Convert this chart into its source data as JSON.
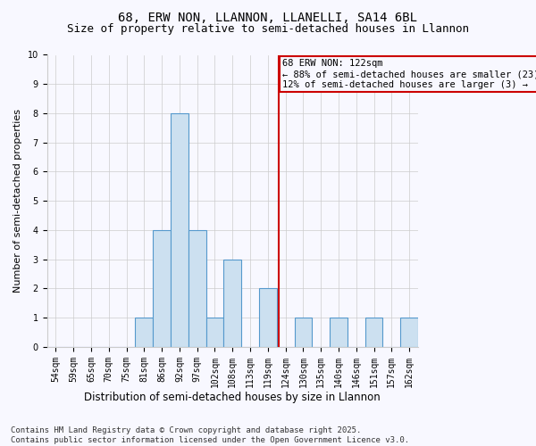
{
  "title1": "68, ERW NON, LLANNON, LLANELLI, SA14 6BL",
  "title2": "Size of property relative to semi-detached houses in Llannon",
  "xlabel": "Distribution of semi-detached houses by size in Llannon",
  "ylabel": "Number of semi-detached properties",
  "categories": [
    "54sqm",
    "59sqm",
    "65sqm",
    "70sqm",
    "75sqm",
    "81sqm",
    "86sqm",
    "92sqm",
    "97sqm",
    "102sqm",
    "108sqm",
    "113sqm",
    "119sqm",
    "124sqm",
    "130sqm",
    "135sqm",
    "140sqm",
    "146sqm",
    "151sqm",
    "157sqm",
    "162sqm"
  ],
  "values": [
    0,
    0,
    0,
    0,
    0,
    1,
    4,
    8,
    4,
    1,
    3,
    0,
    2,
    0,
    1,
    0,
    1,
    0,
    1,
    0,
    1
  ],
  "bar_color": "#cce0f0",
  "bar_edge_color": "#5599cc",
  "pct_smaller": 88,
  "count_smaller": 23,
  "pct_larger": 12,
  "count_larger": 3,
  "vline_color": "#cc0000",
  "box_edge_color": "#cc0000",
  "ylim": [
    0,
    10
  ],
  "yticks": [
    0,
    1,
    2,
    3,
    4,
    5,
    6,
    7,
    8,
    9,
    10
  ],
  "grid_color": "#cccccc",
  "bg_color": "#f8f8ff",
  "footnote": "Contains HM Land Registry data © Crown copyright and database right 2025.\nContains public sector information licensed under the Open Government Licence v3.0.",
  "title1_fontsize": 10,
  "title2_fontsize": 9,
  "xlabel_fontsize": 8.5,
  "ylabel_fontsize": 8,
  "tick_fontsize": 7,
  "annotation_fontsize": 7.5,
  "footnote_fontsize": 6.5
}
